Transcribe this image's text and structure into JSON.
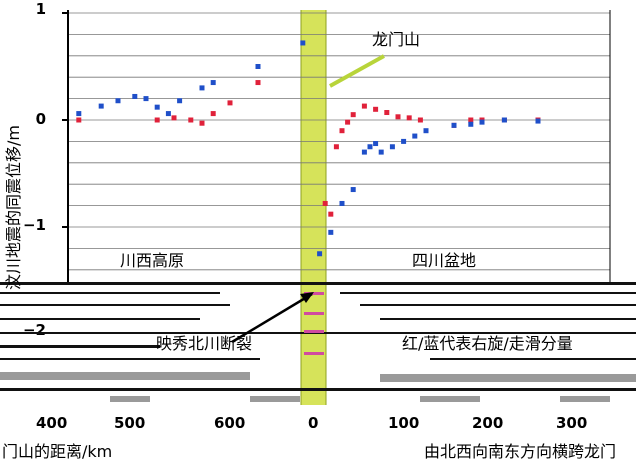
{
  "chart_data": {
    "type": "scatter",
    "title": "",
    "ylabel": "汶川地震的同震位移/m",
    "xlabel_left": "门山的距离/km",
    "xlabel_right": "由北西向南东方向横跨龙门",
    "ylim": [
      -1.3,
      1.05
    ],
    "y_ticks": [
      "1",
      "0",
      "−1",
      "−2"
    ],
    "x_tick_labels": [
      "400",
      "500",
      "600",
      "0",
      "100",
      "200",
      "300"
    ],
    "regions": {
      "left": "川西高原",
      "right": "四川盆地",
      "mountain": "龙门山"
    },
    "annotations": {
      "fault": "映秀北川断裂",
      "legend_note": "红/蓝代表右旋/走滑分量"
    },
    "colors": {
      "red": "#e0213a",
      "blue": "#1f4fc9",
      "band": "#d6e35a",
      "callout": "#b8d43a"
    },
    "series": [
      {
        "color": "red",
        "points": [
          [
            -110,
            0.0
          ],
          [
            -90,
            0.0
          ],
          [
            -75,
            -0.01
          ],
          [
            -42,
            0.0
          ],
          [
            -28,
            0.0
          ],
          [
            -25,
            0.02
          ],
          [
            -22,
            0.0
          ],
          [
            -20,
            -0.03
          ],
          [
            -18,
            0.06
          ],
          [
            -15,
            0.16
          ],
          [
            -10,
            0.35
          ],
          [
            2,
            -0.78
          ],
          [
            3,
            -0.88
          ],
          [
            4,
            -0.25
          ],
          [
            5,
            -0.1
          ],
          [
            6,
            -0.02
          ],
          [
            7,
            0.05
          ],
          [
            9,
            0.13
          ],
          [
            11,
            0.1
          ],
          [
            13,
            0.07
          ],
          [
            15,
            0.03
          ],
          [
            17,
            0.02
          ],
          [
            19,
            0.0
          ],
          [
            25,
            -0.05
          ],
          [
            28,
            0.0
          ],
          [
            30,
            0.0
          ],
          [
            34,
            0.0
          ],
          [
            40,
            0.0
          ]
        ]
      },
      {
        "color": "blue",
        "points": [
          [
            -110,
            0.06
          ],
          [
            -90,
            0.03
          ],
          [
            -80,
            0.08
          ],
          [
            -42,
            0.06
          ],
          [
            -38,
            0.13
          ],
          [
            -35,
            0.18
          ],
          [
            -32,
            0.22
          ],
          [
            -30,
            0.2
          ],
          [
            -28,
            0.12
          ],
          [
            -26,
            0.06
          ],
          [
            -24,
            0.18
          ],
          [
            -20,
            0.3
          ],
          [
            -18,
            0.35
          ],
          [
            -10,
            0.5
          ],
          [
            -2,
            0.72
          ],
          [
            1,
            -1.25
          ],
          [
            3,
            -1.05
          ],
          [
            5,
            -0.78
          ],
          [
            7,
            -0.65
          ],
          [
            9,
            -0.3
          ],
          [
            10,
            -0.25
          ],
          [
            11,
            -0.22
          ],
          [
            12,
            -0.3
          ],
          [
            14,
            -0.25
          ],
          [
            16,
            -0.2
          ],
          [
            18,
            -0.15
          ],
          [
            20,
            -0.1
          ],
          [
            25,
            -0.05
          ],
          [
            28,
            -0.04
          ],
          [
            30,
            -0.02
          ],
          [
            34,
            0.0
          ],
          [
            40,
            -0.01
          ]
        ]
      }
    ]
  }
}
